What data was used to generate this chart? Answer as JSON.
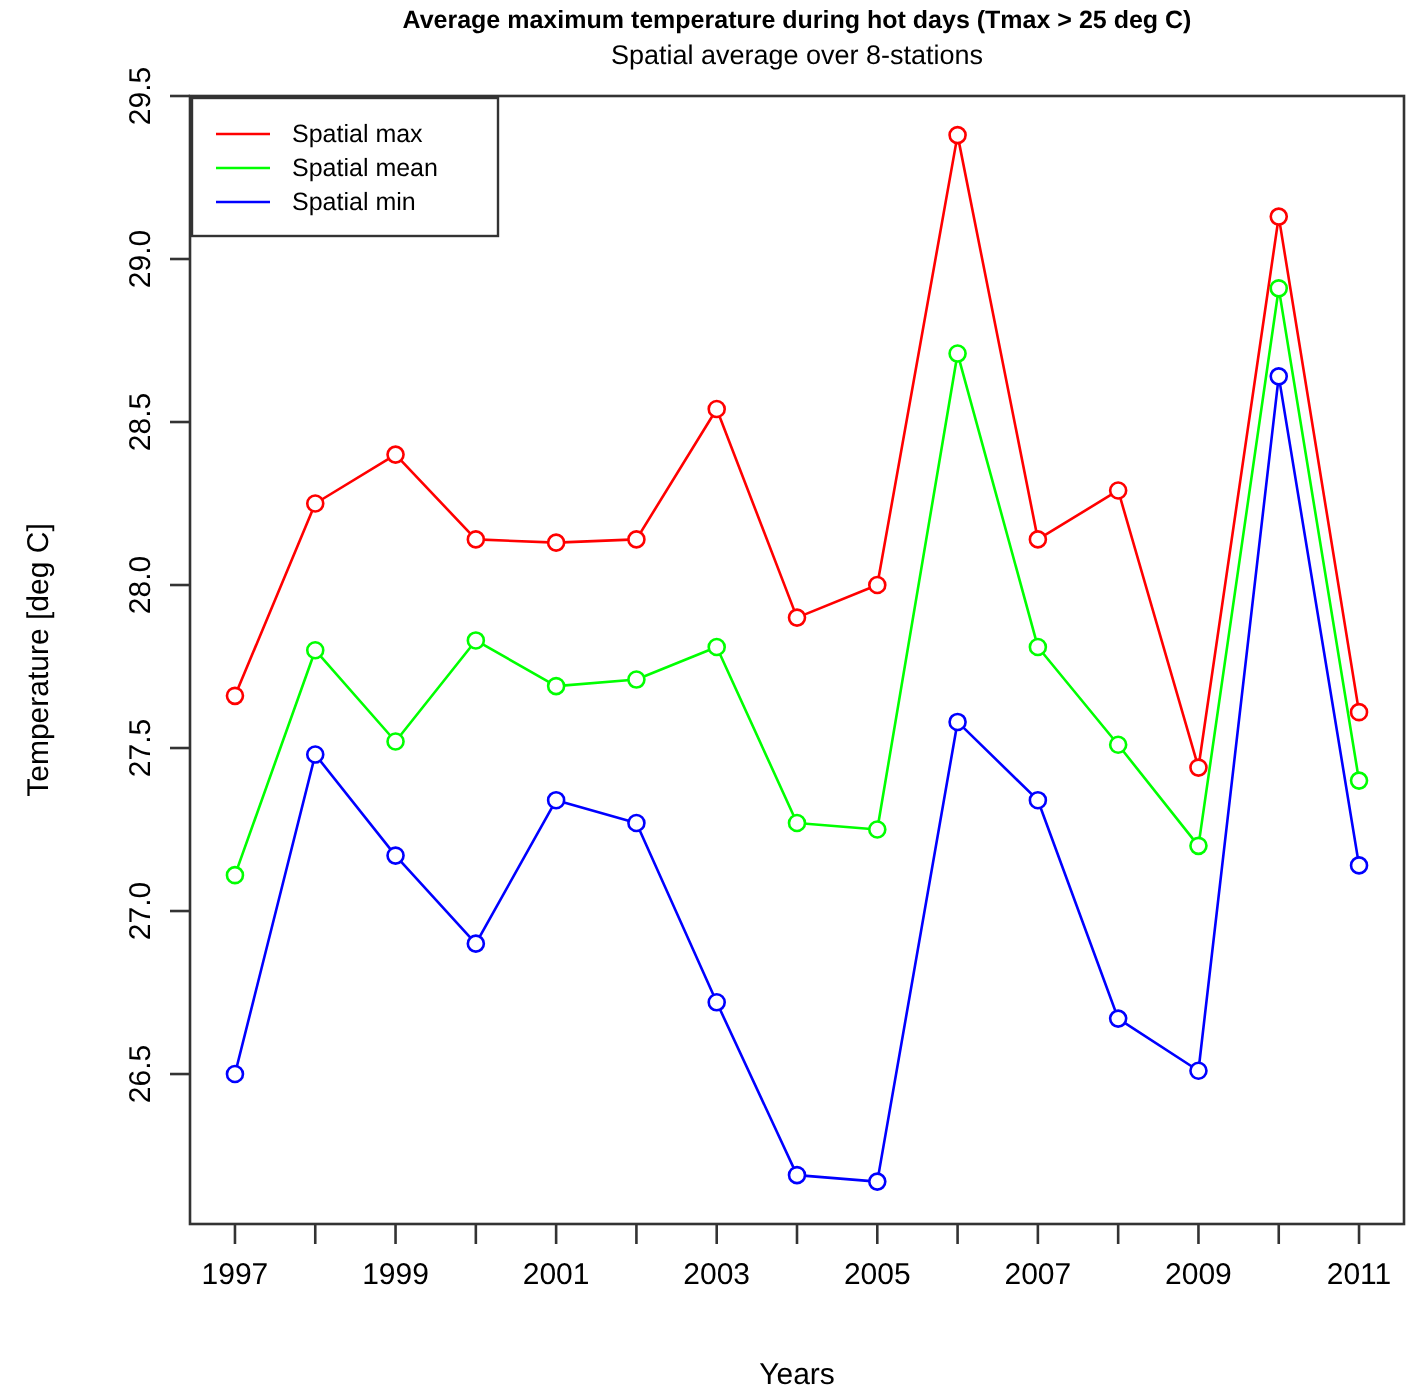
{
  "chart_data": {
    "type": "line",
    "title": "Average maximum temperature during hot days (Tmax > 25 deg C)",
    "subtitle": "Spatial average over 8-stations",
    "xlabel": "Years",
    "ylabel": "Temperature [deg C]",
    "x": [
      1997,
      1998,
      1999,
      2000,
      2001,
      2002,
      2003,
      2004,
      2005,
      2006,
      2007,
      2008,
      2009,
      2010,
      2011
    ],
    "series": [
      {
        "name": "Spatial max",
        "color": "#ff0000",
        "values": [
          27.66,
          28.25,
          28.4,
          28.14,
          28.13,
          28.14,
          28.54,
          27.9,
          28.0,
          29.38,
          28.14,
          28.29,
          27.44,
          29.13,
          27.61
        ]
      },
      {
        "name": "Spatial mean",
        "color": "#00ff00",
        "values": [
          27.11,
          27.8,
          27.52,
          27.83,
          27.69,
          27.71,
          27.81,
          27.27,
          27.25,
          28.71,
          27.81,
          27.51,
          27.2,
          28.91,
          27.4
        ]
      },
      {
        "name": "Spatial min",
        "color": "#0000ff",
        "values": [
          26.5,
          27.48,
          27.17,
          26.9,
          27.34,
          27.27,
          26.72,
          26.19,
          26.17,
          27.58,
          27.34,
          26.67,
          26.51,
          28.64,
          27.14
        ]
      }
    ],
    "xlim": [
      1996.44,
      2011.56
    ],
    "ylim": [
      26.04,
      29.5
    ],
    "xticks": [
      1997,
      {
        "value": 1998,
        "label": null
      },
      1999,
      {
        "value": 2000,
        "label": null
      },
      2001,
      {
        "value": 2002,
        "label": null
      },
      2003,
      {
        "value": 2004,
        "label": null
      },
      2005,
      {
        "value": 2006,
        "label": null
      },
      2007,
      {
        "value": 2008,
        "label": null
      },
      2009,
      {
        "value": 2010,
        "label": null
      },
      2011
    ],
    "yticks": [
      {
        "value": 26.5,
        "label": "26.5"
      },
      {
        "value": 27,
        "label": "27.0"
      },
      {
        "value": 27.5,
        "label": "27.5"
      },
      {
        "value": 28,
        "label": "28.0"
      },
      {
        "value": 28.5,
        "label": "28.5"
      },
      {
        "value": 29,
        "label": "29.0"
      },
      {
        "value": 29.5,
        "label": "29.5"
      }
    ],
    "legend": "top left",
    "marker": "circle",
    "line_style": "solid",
    "grid": false
  }
}
